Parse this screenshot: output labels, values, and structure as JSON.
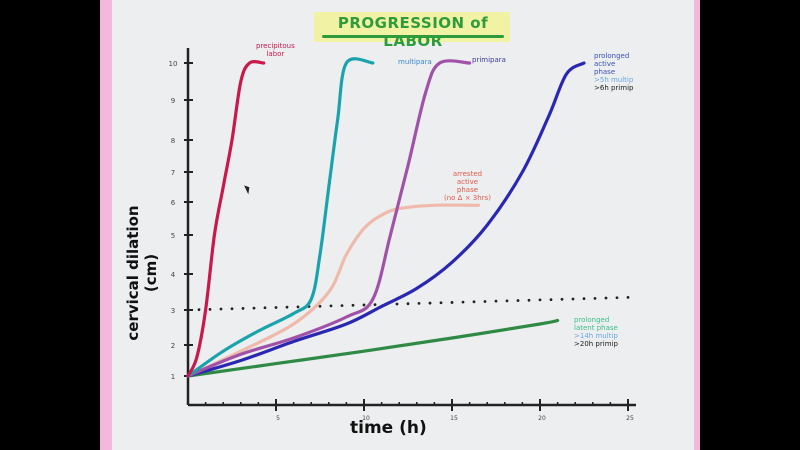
{
  "title": "PROGRESSION of LABOR",
  "axes": {
    "ylabel": "cervical dilation (cm)",
    "xlabel": "time (h)",
    "y_ticks": [
      "1",
      "2",
      "3",
      "4",
      "5",
      "6",
      "7",
      "8",
      "9",
      "10"
    ],
    "x_ticks": [
      "5",
      "10",
      "15",
      "20",
      "25"
    ]
  },
  "annotations": {
    "precipitous": [
      "precipitous",
      "labor"
    ],
    "multipara": "multipara",
    "primipara": "primipara",
    "prolonged_active": [
      "prolonged",
      "active",
      "phase"
    ],
    "prolonged_active_multip": ">5h multip",
    "prolonged_active_primip": ">6h primip",
    "arrested": [
      "arrested",
      "active",
      "phase",
      "(no Δ × 3hrs)"
    ],
    "prolonged_latent": [
      "prolonged",
      "latent phase"
    ],
    "prolonged_latent_multip": ">14h multip",
    "prolonged_latent_primip": ">20h primip"
  },
  "chart_data": {
    "type": "line",
    "title": "PROGRESSION of LABOR",
    "xlabel": "time (h)",
    "ylabel": "cervical dilation (cm)",
    "xlim": [
      0,
      25
    ],
    "ylim": [
      0,
      10
    ],
    "x_ticks": [
      5,
      10,
      15,
      20,
      25
    ],
    "y_ticks": [
      1,
      2,
      3,
      4,
      5,
      6,
      7,
      8,
      9,
      10
    ],
    "grid": false,
    "legend": "inline annotations",
    "series": [
      {
        "name": "precipitous labor",
        "color": "#c8194a",
        "x": [
          0,
          0.5,
          1,
          1.5,
          2,
          2.5,
          3,
          3.5,
          4.3
        ],
        "y": [
          1,
          1.6,
          3,
          5,
          6.5,
          8,
          9.5,
          10,
          10
        ]
      },
      {
        "name": "multipara",
        "color": "#1aa3ad",
        "x": [
          0,
          2,
          4,
          6,
          7,
          7.5,
          8,
          8.5,
          9,
          10.5
        ],
        "y": [
          1,
          1.8,
          2.4,
          2.9,
          3.3,
          4.5,
          6.5,
          8.5,
          10,
          10
        ]
      },
      {
        "name": "primipara",
        "color": "#a052a8",
        "x": [
          0,
          3,
          6,
          9,
          10.5,
          11.5,
          12.5,
          13.5,
          14.3,
          16
        ],
        "y": [
          1,
          1.7,
          2.2,
          2.8,
          3.3,
          5,
          7.2,
          9.2,
          10,
          10
        ]
      },
      {
        "name": "prolonged active phase",
        "color": "#2a28b0",
        "x": [
          0,
          3,
          6,
          9,
          11,
          13,
          15,
          17,
          19,
          20.5,
          21.5,
          22.5
        ],
        "y": [
          1,
          1.5,
          2.1,
          2.6,
          3.1,
          3.6,
          4.3,
          5.3,
          7,
          8.6,
          9.7,
          10
        ]
      },
      {
        "name": "arrested active phase",
        "color": "#f0b0a0",
        "x": [
          0,
          3,
          6,
          8,
          9,
          10,
          11,
          12,
          14,
          16.5
        ],
        "y": [
          1,
          1.8,
          2.6,
          3.5,
          4.5,
          5.2,
          5.6,
          5.8,
          5.9,
          5.9
        ]
      },
      {
        "name": "prolonged latent phase",
        "color": "#2e8a44",
        "x": [
          0,
          5,
          10,
          15,
          20,
          21
        ],
        "y": [
          1,
          1.4,
          1.8,
          2.2,
          2.6,
          2.7
        ]
      },
      {
        "name": "active phase threshold (3 cm)",
        "color": "#222222",
        "style": "dotted",
        "x": [
          0,
          25
        ],
        "y": [
          3,
          3.35
        ]
      }
    ]
  }
}
